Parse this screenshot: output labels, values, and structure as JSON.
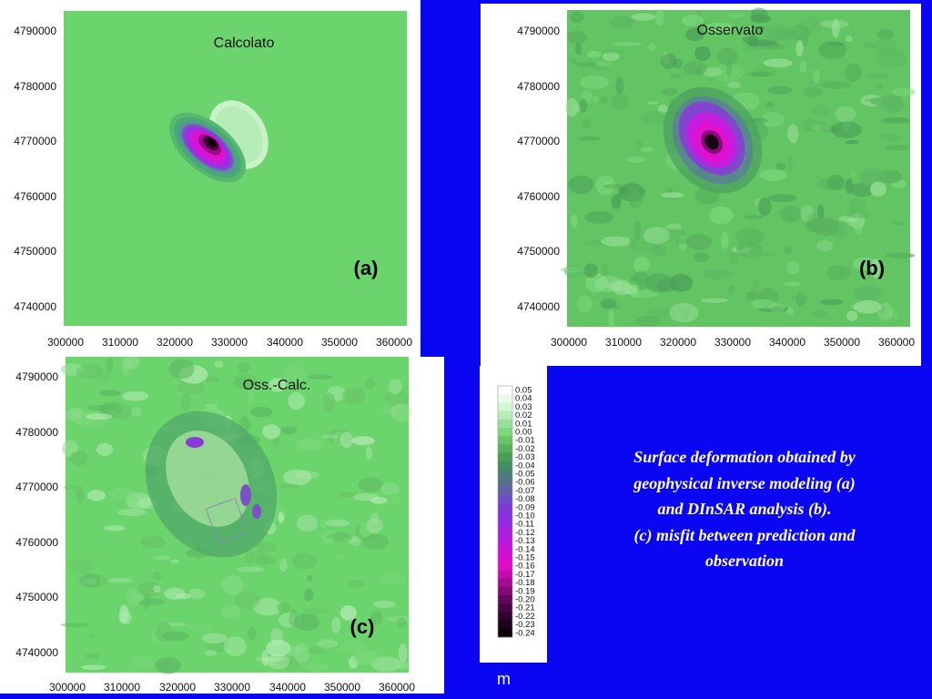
{
  "panels": [
    {
      "title": "Calcolato",
      "label": "(a)",
      "x_ticks": [
        "300000",
        "310000",
        "320000",
        "330000",
        "340000",
        "350000",
        "360000"
      ],
      "y_ticks": [
        "4790000",
        "4780000",
        "4770000",
        "4760000",
        "4750000",
        "4740000"
      ]
    },
    {
      "title": "Osservato",
      "label": "(b)",
      "x_ticks": [
        "300000",
        "310000",
        "320000",
        "330000",
        "340000",
        "350000",
        "360000"
      ],
      "y_ticks": [
        "4790000",
        "4780000",
        "4770000",
        "4760000",
        "4750000",
        "4740000"
      ]
    },
    {
      "title": "Oss.-Calc.",
      "label": "(c)",
      "x_ticks": [
        "300000",
        "310000",
        "320000",
        "330000",
        "340000",
        "350000",
        "360000"
      ],
      "y_ticks": [
        "4790000",
        "4780000",
        "4770000",
        "4760000",
        "4750000",
        "4740000"
      ]
    }
  ],
  "colorbar": {
    "labels": [
      "0.05",
      "0.04",
      "0.03",
      "0.02",
      "0.01",
      "0.00",
      "-0.01",
      "-0.02",
      "-0.03",
      "-0.04",
      "-0.05",
      "-0.06",
      "-0.07",
      "-0.08",
      "-0.09",
      "-0.10",
      "-0.11",
      "-0.12",
      "-0.13",
      "-0.14",
      "-0.15",
      "-0.16",
      "-0.17",
      "-0.18",
      "-0.19",
      "-0.20",
      "-0.21",
      "-0.22",
      "-0.23",
      "-0.24"
    ],
    "unit": "m"
  },
  "caption": {
    "lines": [
      "Surface deformation obtained by",
      "geophysical inverse modeling (a)",
      "and DInSAR analysis (b).",
      "(c) misfit between prediction and",
      "observation"
    ]
  },
  "colors": {
    "background": "#0b06f2",
    "field_green": "#6cd46c",
    "low_magenta": "#e010d0",
    "deep_black": "#120008"
  }
}
